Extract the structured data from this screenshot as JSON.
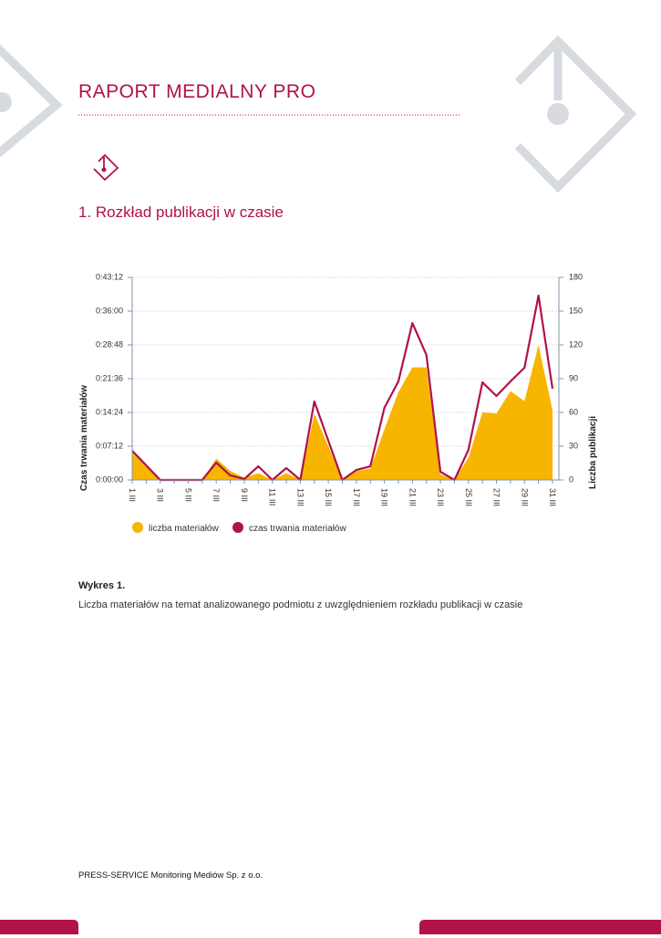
{
  "header": {
    "title": "RAPORT MEDIALNY PRO"
  },
  "section_title": "1. Rozkład publikacji w czasie",
  "chart_data": {
    "type": "combo",
    "y_label": "Czas trwania materiałów",
    "y2_label": "Liczba publikacji",
    "categories": [
      "1 III",
      null,
      "3 III",
      null,
      "5 III",
      null,
      "7 III",
      null,
      "9 III",
      null,
      "11 III",
      null,
      "13 III",
      null,
      "15 III",
      null,
      "17 III",
      null,
      "19 III",
      null,
      "21 III",
      null,
      "23 III",
      null,
      "25 III",
      null,
      "27 III",
      null,
      "29 III",
      null,
      "31 III"
    ],
    "ylim": [
      0,
      2592
    ],
    "yticks": [
      {
        "value": 0,
        "label": "0:00:00"
      },
      {
        "value": 432,
        "label": "0:07:12"
      },
      {
        "value": 864,
        "label": "0:14:24"
      },
      {
        "value": 1296,
        "label": "0:21:36"
      },
      {
        "value": 1728,
        "label": "0:28:48"
      },
      {
        "value": 2160,
        "label": "0:36:00"
      },
      {
        "value": 2592,
        "label": "0:43:12"
      }
    ],
    "y2lim": [
      0,
      180
    ],
    "y2ticks": [
      0,
      30,
      60,
      90,
      120,
      150,
      180
    ],
    "grid": true,
    "series": [
      {
        "name": "liczba materiałów",
        "type": "area",
        "axis": "y2",
        "color": "#f7b500",
        "values": [
          26,
          13,
          0,
          0,
          0,
          0,
          19,
          8,
          2,
          6,
          0,
          6,
          0,
          59,
          30,
          0,
          8,
          10,
          45,
          78,
          100,
          100,
          5,
          0,
          20,
          60,
          59,
          79,
          70,
          120,
          62
        ]
      },
      {
        "name": "czas trwania materiałów",
        "type": "line",
        "color": "#b0124a",
        "values": [
          374,
          187,
          0,
          0,
          0,
          0,
          222,
          58,
          12,
          175,
          0,
          152,
          0,
          1004,
          502,
          0,
          128,
          175,
          922,
          1261,
          2008,
          1600,
          105,
          0,
          385,
          1249,
          1074,
          1261,
          1436,
          2359,
          1168
        ]
      }
    ]
  },
  "figure": {
    "label": "Wykres 1.",
    "caption": "Liczba materiałów na temat analizowanego podmiotu z uwzględnieniem rozkładu publikacji w czasie"
  },
  "footer": "PRESS-SERVICE Monitoring Mediów Sp. z o.o."
}
